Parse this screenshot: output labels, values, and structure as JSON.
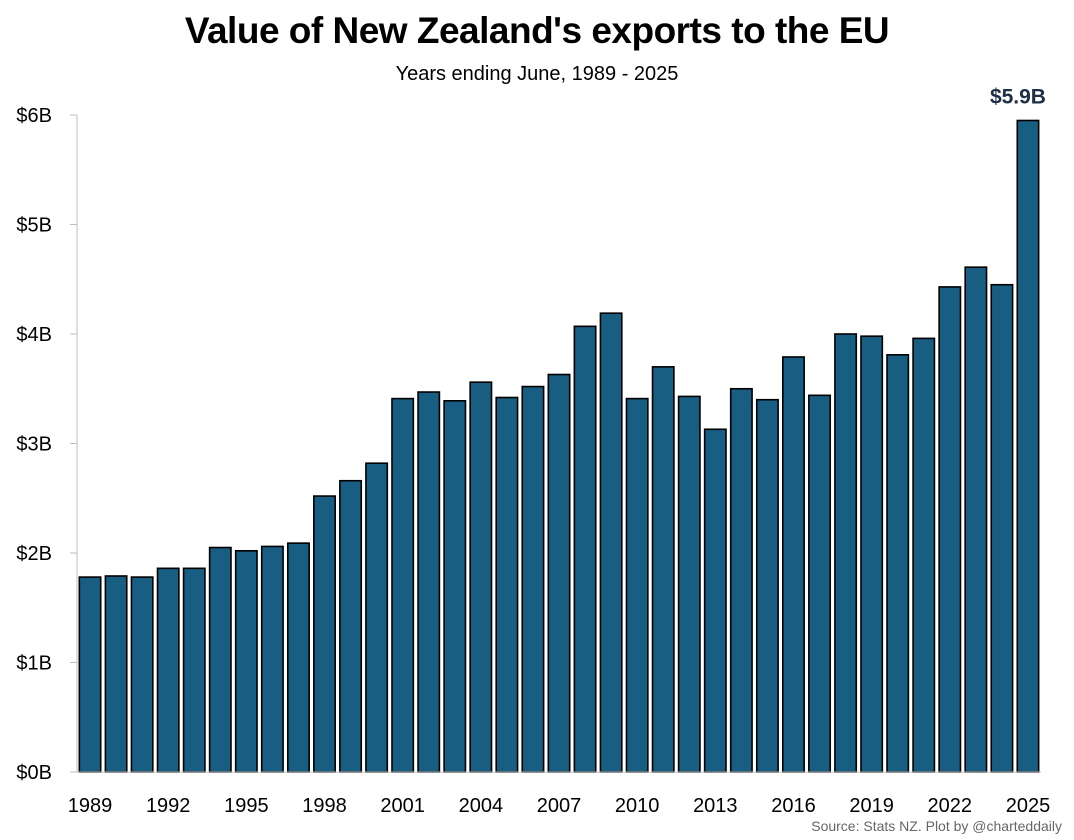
{
  "chart_data": {
    "type": "bar",
    "title": "Value of New Zealand's exports to the EU",
    "subtitle": "Years ending June, 1989 - 2025",
    "categories": [
      1989,
      1990,
      1991,
      1992,
      1993,
      1994,
      1995,
      1996,
      1997,
      1998,
      1999,
      2000,
      2001,
      2002,
      2003,
      2004,
      2005,
      2006,
      2007,
      2008,
      2009,
      2010,
      2011,
      2012,
      2013,
      2014,
      2015,
      2016,
      2017,
      2018,
      2019,
      2020,
      2021,
      2022,
      2023,
      2024,
      2025
    ],
    "values": [
      1.78,
      1.79,
      1.78,
      1.86,
      1.86,
      2.05,
      2.02,
      2.06,
      2.09,
      2.52,
      2.66,
      2.82,
      3.41,
      3.47,
      3.39,
      3.56,
      3.42,
      3.52,
      3.63,
      4.07,
      4.19,
      3.41,
      3.7,
      3.43,
      3.13,
      3.5,
      3.4,
      3.79,
      3.44,
      4.0,
      3.98,
      3.81,
      3.96,
      4.43,
      4.61,
      4.45,
      5.95
    ],
    "x_tick_labels": [
      "1989",
      "1992",
      "1995",
      "1998",
      "2001",
      "2004",
      "2007",
      "2010",
      "2013",
      "2016",
      "2019",
      "2022",
      "2025"
    ],
    "y_tick_labels": [
      "$0B",
      "$1B",
      "$2B",
      "$3B",
      "$4B",
      "$5B",
      "$6B"
    ],
    "y_ticks": [
      0,
      1,
      2,
      3,
      4,
      5,
      6
    ],
    "ylim": [
      0,
      6
    ],
    "xlabel": "",
    "ylabel": "",
    "grid": false,
    "bar_color": "#185e82",
    "bar_edge_color": "#000000",
    "annotation": {
      "label": "$5.9B",
      "category": 2025,
      "color": "#1c2f45"
    },
    "source": "Source: Stats NZ. Plot by @charteddaily"
  }
}
